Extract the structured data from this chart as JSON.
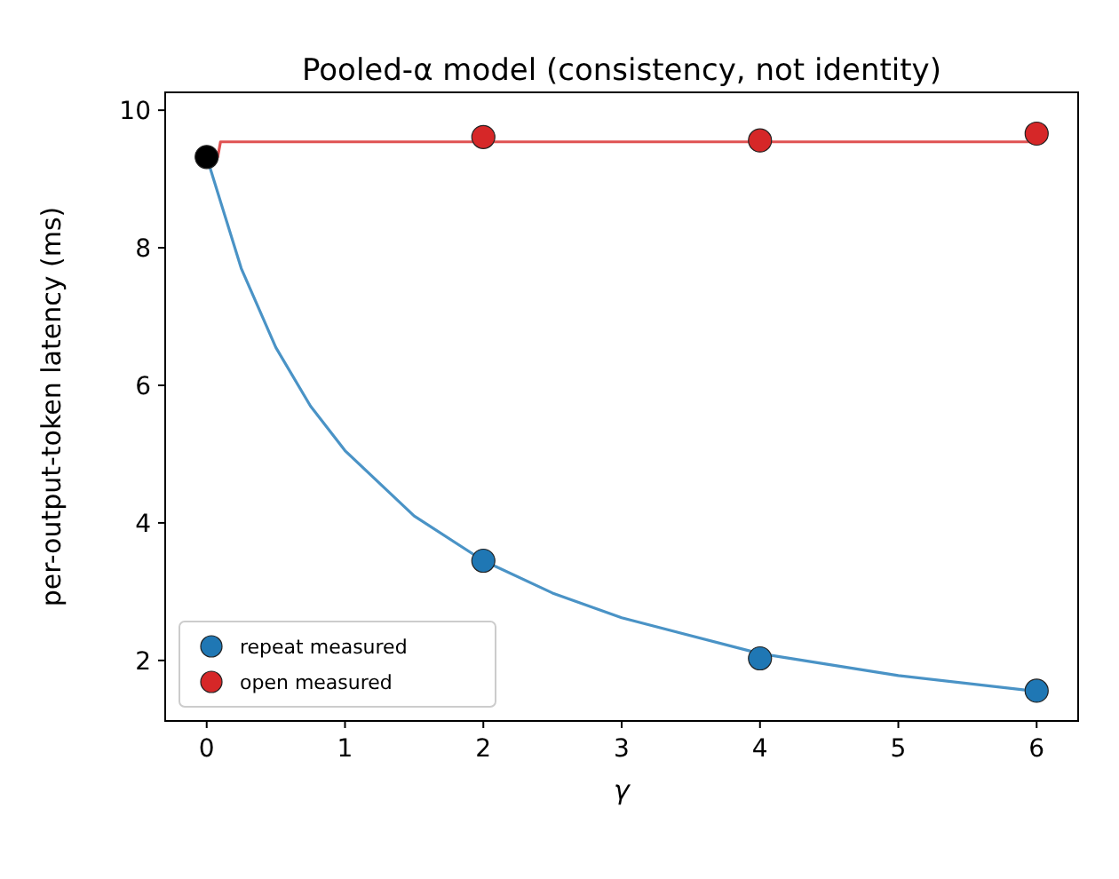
{
  "chart_data": {
    "type": "scatter",
    "title": "Pooled-α model (consistency, not identity)",
    "xlabel": "γ",
    "ylabel": "per-output-token latency (ms)",
    "xlim": [
      -0.3,
      6.3
    ],
    "ylim": [
      1.12,
      10.26
    ],
    "xticks": [
      0,
      1,
      2,
      3,
      4,
      5,
      6
    ],
    "yticks": [
      2,
      4,
      6,
      8,
      10
    ],
    "grid": false,
    "legend": "bottom left",
    "marker": "circle",
    "series": [
      {
        "type": "line",
        "marker": "none",
        "color": "#4a93c6",
        "x": [
          0,
          0.25,
          0.5,
          0.75,
          1,
          1.5,
          2,
          2.5,
          3,
          4,
          5,
          6
        ],
        "values": [
          9.32,
          7.7,
          6.55,
          5.7,
          5.05,
          4.1,
          3.45,
          2.98,
          2.62,
          2.1,
          1.78,
          1.55
        ]
      },
      {
        "type": "line",
        "marker": "none",
        "color": "#e05252",
        "x": [
          0,
          0.08,
          0.1,
          6
        ],
        "values": [
          9.32,
          9.32,
          9.54,
          9.54
        ]
      },
      {
        "name": "repeat measured",
        "color": "#1f77b4",
        "x": [
          2,
          4,
          6
        ],
        "values": [
          3.45,
          2.03,
          1.56
        ]
      },
      {
        "name": "open measured",
        "color": "#d62728",
        "x": [
          2,
          4,
          6
        ],
        "values": [
          9.61,
          9.56,
          9.66
        ]
      },
      {
        "color": "#000000",
        "x": [
          0
        ],
        "values": [
          9.32
        ]
      }
    ]
  }
}
